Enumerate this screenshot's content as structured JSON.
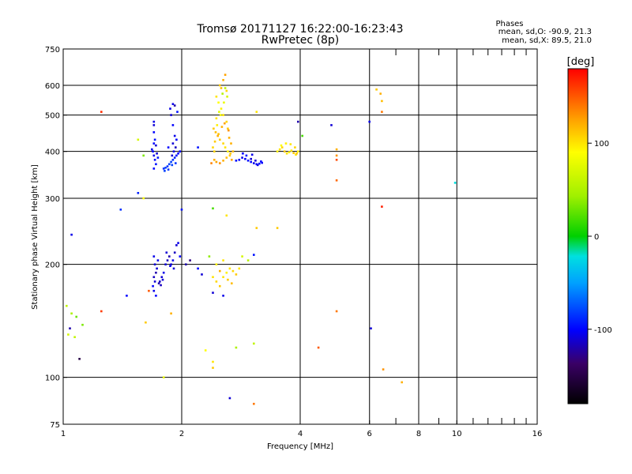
{
  "header": {
    "title_line1": "Tromsø 20171127 16:22:00-16:23:43",
    "title_line2": "RwPretec (8p)"
  },
  "stats": {
    "heading": "Phases",
    "line_o": "mean, sd,O: -90.9, 21.3",
    "line_x": "mean, sd,X:  89.5, 21.0"
  },
  "colorbar": {
    "unit_label": "[deg]",
    "ticks": [
      {
        "label": "100",
        "value": 100
      },
      {
        "label": "0",
        "value": 0
      },
      {
        "label": "-100",
        "value": -100
      }
    ],
    "range": [
      -180,
      180
    ]
  },
  "chart_data": {
    "type": "scatter",
    "title": "Tromsø 20171127 16:22:00-16:23:43",
    "subtitle": "RwPretec (8p)",
    "xlabel": "Frequency [MHz]",
    "ylabel": "Stationary phase Virtual Height [km]",
    "x_scale": "log",
    "y_scale": "log",
    "xlim": [
      1,
      16
    ],
    "ylim": [
      75,
      750
    ],
    "x_ticks": [
      {
        "label": "1",
        "value": 1
      },
      {
        "label": "2",
        "value": 2
      },
      {
        "label": "4",
        "value": 4
      },
      {
        "label": "6",
        "value": 6
      },
      {
        "label": "8",
        "value": 8
      },
      {
        "label": "10",
        "value": 10
      },
      {
        "label": "16",
        "value": 16
      }
    ],
    "x_grid": [
      2,
      4,
      6,
      8,
      10
    ],
    "x_minor": [
      7,
      9,
      11,
      12,
      13,
      14,
      15
    ],
    "y_ticks": [
      {
        "label": "75",
        "value": 75
      },
      {
        "label": "100",
        "value": 100
      },
      {
        "label": "200",
        "value": 200
      },
      {
        "label": "300",
        "value": 300
      },
      {
        "label": "400",
        "value": 400
      },
      {
        "label": "500",
        "value": 500
      },
      {
        "label": "600",
        "value": 600
      },
      {
        "label": "750",
        "value": 750
      }
    ],
    "y_grid": [
      100,
      200,
      300,
      400,
      500,
      600
    ],
    "grid": true,
    "color_scale": "phase in degrees (-180 black, -100 blue, 0 green, 100 yellow, 180 red)",
    "series": [
      {
        "points": [
          [
            1.7,
            480,
            -105
          ],
          [
            1.7,
            470,
            -110
          ],
          [
            1.7,
            450,
            -100
          ],
          [
            1.71,
            430,
            -95
          ],
          [
            1.7,
            420,
            -100
          ],
          [
            1.72,
            415,
            -110
          ],
          [
            1.69,
            400,
            -100
          ],
          [
            1.7,
            390,
            -105
          ],
          [
            1.71,
            380,
            -100
          ],
          [
            1.72,
            370,
            -95
          ],
          [
            1.7,
            360,
            -100
          ],
          [
            1.73,
            395,
            -110
          ],
          [
            1.68,
            405,
            -105
          ],
          [
            1.74,
            385,
            -95
          ],
          [
            1.8,
            360,
            -85
          ],
          [
            1.82,
            362,
            -80
          ],
          [
            1.84,
            365,
            -85
          ],
          [
            1.86,
            370,
            -80
          ],
          [
            1.88,
            375,
            -80
          ],
          [
            1.9,
            380,
            -85
          ],
          [
            1.92,
            385,
            -90
          ],
          [
            1.94,
            390,
            -95
          ],
          [
            1.96,
            395,
            -100
          ],
          [
            1.98,
            400,
            -100
          ],
          [
            1.81,
            355,
            -80
          ],
          [
            1.85,
            358,
            -85
          ],
          [
            1.89,
            368,
            -80
          ],
          [
            1.93,
            372,
            -85
          ],
          [
            1.87,
            520,
            -105
          ],
          [
            1.88,
            500,
            -110
          ],
          [
            1.9,
            470,
            -100
          ],
          [
            1.92,
            440,
            -105
          ],
          [
            1.9,
            420,
            -110
          ],
          [
            1.93,
            410,
            -115
          ],
          [
            1.91,
            400,
            -105
          ],
          [
            1.89,
            390,
            -110
          ],
          [
            1.94,
            430,
            -100
          ],
          [
            1.95,
            510,
            -95
          ],
          [
            1.92,
            530,
            -120
          ],
          [
            1.9,
            535,
            -105
          ],
          [
            2.5,
            600,
            110
          ],
          [
            2.52,
            590,
            115
          ],
          [
            2.55,
            620,
            120
          ],
          [
            2.58,
            640,
            125
          ],
          [
            2.6,
            580,
            105
          ],
          [
            2.45,
            560,
            100
          ],
          [
            2.48,
            540,
            90
          ],
          [
            2.52,
            520,
            95
          ],
          [
            2.55,
            500,
            100
          ],
          [
            2.6,
            480,
            105
          ],
          [
            2.62,
            460,
            110
          ],
          [
            2.44,
            450,
            115
          ],
          [
            2.47,
            440,
            120
          ],
          [
            2.5,
            430,
            110
          ],
          [
            2.55,
            420,
            105
          ],
          [
            2.58,
            410,
            100
          ],
          [
            2.62,
            400,
            95
          ],
          [
            2.65,
            390,
            110
          ],
          [
            2.42,
            380,
            120
          ],
          [
            2.45,
            375,
            125
          ],
          [
            2.5,
            372,
            130
          ],
          [
            2.55,
            378,
            120
          ],
          [
            2.6,
            385,
            115
          ],
          [
            2.66,
            395,
            110
          ],
          [
            2.4,
            410,
            105
          ],
          [
            2.43,
            425,
            110
          ],
          [
            2.48,
            445,
            115
          ],
          [
            2.53,
            465,
            120
          ],
          [
            2.57,
            475,
            125
          ],
          [
            2.63,
            455,
            130
          ],
          [
            2.64,
            435,
            120
          ],
          [
            2.38,
            372,
            135
          ],
          [
            2.42,
            400,
            105
          ],
          [
            2.46,
            470,
            95
          ],
          [
            2.51,
            500,
            85
          ],
          [
            2.56,
            540,
            80
          ],
          [
            2.61,
            560,
            70
          ],
          [
            2.58,
            590,
            60
          ],
          [
            2.54,
            570,
            55
          ],
          [
            2.49,
            510,
            75
          ],
          [
            2.45,
            490,
            100
          ],
          [
            2.41,
            460,
            110
          ],
          [
            2.67,
            420,
            120
          ],
          [
            2.68,
            380,
            125
          ],
          [
            2.7,
            400,
            115
          ],
          [
            2.75,
            378,
            -95
          ],
          [
            2.8,
            380,
            -100
          ],
          [
            2.85,
            385,
            -105
          ],
          [
            2.9,
            382,
            -100
          ],
          [
            2.95,
            378,
            -95
          ],
          [
            3.0,
            375,
            -100
          ],
          [
            3.05,
            372,
            -105
          ],
          [
            3.1,
            370,
            -100
          ],
          [
            3.15,
            371,
            -95
          ],
          [
            3.2,
            373,
            -100
          ],
          [
            3.08,
            378,
            -110
          ],
          [
            3.12,
            368,
            -105
          ],
          [
            3.18,
            376,
            -100
          ],
          [
            3.0,
            382,
            -110
          ],
          [
            2.92,
            390,
            -95
          ],
          [
            2.86,
            395,
            -100
          ],
          [
            3.02,
            392,
            -105
          ],
          [
            3.5,
            400,
            95
          ],
          [
            3.55,
            405,
            100
          ],
          [
            3.6,
            410,
            105
          ],
          [
            3.65,
            400,
            110
          ],
          [
            3.7,
            395,
            100
          ],
          [
            3.75,
            398,
            95
          ],
          [
            3.8,
            402,
            100
          ],
          [
            3.85,
            396,
            110
          ],
          [
            3.9,
            392,
            100
          ],
          [
            3.95,
            400,
            95
          ],
          [
            3.58,
            415,
            90
          ],
          [
            3.68,
            420,
            95
          ],
          [
            3.78,
            418,
            100
          ],
          [
            3.88,
            410,
            105
          ],
          [
            3.92,
            395,
            110
          ],
          [
            4.05,
            440,
            20
          ],
          [
            3.95,
            480,
            -120
          ],
          [
            4.8,
            470,
            -110
          ],
          [
            4.95,
            405,
            120
          ],
          [
            4.95,
            390,
            130
          ],
          [
            4.95,
            380,
            155
          ],
          [
            4.95,
            335,
            145
          ],
          [
            1.7,
            210,
            -105
          ],
          [
            1.71,
            200,
            -110
          ],
          [
            1.72,
            190,
            -120
          ],
          [
            1.7,
            185,
            -115
          ],
          [
            1.71,
            180,
            -110
          ],
          [
            1.69,
            175,
            -100
          ],
          [
            1.7,
            170,
            -105
          ],
          [
            1.72,
            165,
            -100
          ],
          [
            1.73,
            195,
            -110
          ],
          [
            1.74,
            205,
            -105
          ],
          [
            1.76,
            180,
            -115
          ],
          [
            1.78,
            185,
            -110
          ],
          [
            1.8,
            190,
            -105
          ],
          [
            1.82,
            200,
            -110
          ],
          [
            1.84,
            205,
            -115
          ],
          [
            1.86,
            210,
            -120
          ],
          [
            1.88,
            200,
            -110
          ],
          [
            1.9,
            205,
            -105
          ],
          [
            1.92,
            215,
            -115
          ],
          [
            1.94,
            225,
            -110
          ],
          [
            1.96,
            228,
            -105
          ],
          [
            1.98,
            210,
            -100
          ],
          [
            1.75,
            178,
            -120
          ],
          [
            1.77,
            176,
            -115
          ],
          [
            1.79,
            182,
            -110
          ],
          [
            1.83,
            215,
            -110
          ],
          [
            1.87,
            198,
            -105
          ],
          [
            1.91,
            195,
            -110
          ],
          [
            2.05,
            200,
            -120
          ],
          [
            2.1,
            205,
            -130
          ],
          [
            2.2,
            195,
            -100
          ],
          [
            2.25,
            188,
            -110
          ],
          [
            2.4,
            185,
            100
          ],
          [
            2.45,
            180,
            105
          ],
          [
            2.5,
            175,
            110
          ],
          [
            2.55,
            185,
            100
          ],
          [
            2.6,
            190,
            95
          ],
          [
            2.65,
            195,
            100
          ],
          [
            2.7,
            192,
            105
          ],
          [
            2.75,
            188,
            110
          ],
          [
            2.8,
            195,
            100
          ],
          [
            2.45,
            200,
            95
          ],
          [
            2.55,
            205,
            100
          ],
          [
            2.62,
            182,
            110
          ],
          [
            2.68,
            178,
            115
          ],
          [
            2.5,
            192,
            120
          ],
          [
            2.85,
            210,
            70
          ],
          [
            2.95,
            205,
            55
          ],
          [
            3.05,
            212,
            -95
          ],
          [
            2.35,
            210,
            40
          ],
          [
            2.4,
            168,
            -110
          ],
          [
            2.55,
            165,
            -105
          ],
          [
            1.25,
            510,
            165
          ],
          [
            1.55,
            430,
            70
          ],
          [
            1.6,
            390,
            35
          ],
          [
            1.4,
            280,
            -85
          ],
          [
            1.55,
            310,
            -90
          ],
          [
            1.6,
            300,
            90
          ],
          [
            2.0,
            280,
            -95
          ],
          [
            2.4,
            282,
            20
          ],
          [
            2.6,
            270,
            100
          ],
          [
            1.05,
            240,
            -105
          ],
          [
            1.85,
            410,
            -100
          ],
          [
            3.1,
            250,
            110
          ],
          [
            3.5,
            250,
            110
          ],
          [
            3.1,
            510,
            100
          ],
          [
            2.2,
            410,
            -95
          ],
          [
            1.02,
            155,
            60
          ],
          [
            1.05,
            148,
            50
          ],
          [
            1.08,
            145,
            30
          ],
          [
            1.12,
            138,
            35
          ],
          [
            1.03,
            130,
            70
          ],
          [
            1.07,
            128,
            60
          ],
          [
            1.04,
            135,
            -120
          ],
          [
            1.1,
            112,
            -150
          ],
          [
            1.25,
            150,
            160
          ],
          [
            1.45,
            165,
            -100
          ],
          [
            1.65,
            170,
            150
          ],
          [
            1.62,
            140,
            110
          ],
          [
            1.88,
            148,
            120
          ],
          [
            1.8,
            100,
            80
          ],
          [
            2.3,
            118,
            90
          ],
          [
            2.4,
            110,
            100
          ],
          [
            2.4,
            106,
            110
          ],
          [
            2.75,
            120,
            50
          ],
          [
            3.05,
            123,
            60
          ],
          [
            2.65,
            88,
            -110
          ],
          [
            3.05,
            85,
            140
          ],
          [
            4.45,
            120,
            150
          ],
          [
            4.95,
            150,
            140
          ],
          [
            6.05,
            135,
            -110
          ],
          [
            6.25,
            585,
            110
          ],
          [
            6.4,
            570,
            120
          ],
          [
            6.45,
            545,
            115
          ],
          [
            6.45,
            510,
            140
          ],
          [
            6.45,
            285,
            170
          ],
          [
            6.5,
            105,
            130
          ],
          [
            7.25,
            97,
            120
          ],
          [
            6.0,
            480,
            -105
          ],
          [
            9.9,
            330,
            -20
          ]
        ]
      }
    ]
  }
}
